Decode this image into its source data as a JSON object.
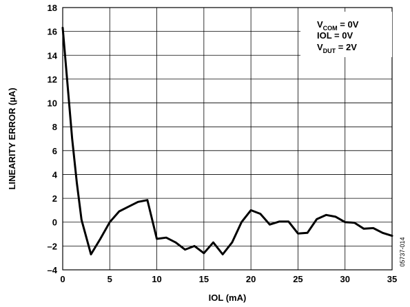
{
  "chart_data": {
    "type": "line",
    "xlabel": "IOL (mA)",
    "ylabel": "LINEARITY ERROR (µA)",
    "xlim": [
      0,
      35
    ],
    "ylim": [
      -4,
      18
    ],
    "x_ticks": [
      0,
      5,
      10,
      15,
      20,
      25,
      30,
      35
    ],
    "y_ticks": [
      -4,
      -2,
      0,
      2,
      4,
      6,
      8,
      10,
      12,
      14,
      16,
      18
    ],
    "grid": true,
    "legend_placement": "top-right",
    "annotations": [
      {
        "main": "V",
        "sub": "COM",
        "rest": " = 0V"
      },
      {
        "main": "IOL = 0V",
        "sub": "",
        "rest": ""
      },
      {
        "main": "V",
        "sub": "DUT",
        "rest": " = 2V"
      }
    ],
    "figure_id": "05737-014",
    "series": [
      {
        "x": [
          0,
          1,
          1.5,
          2,
          3,
          4,
          5,
          6,
          7,
          8,
          9,
          10,
          11,
          12,
          13,
          14,
          15,
          16,
          17,
          18,
          19,
          20,
          21,
          22,
          23,
          24,
          25,
          26,
          27,
          28,
          29,
          30,
          31,
          32,
          33,
          34,
          35
        ],
        "y": [
          16.3,
          7.0,
          3.3,
          0.2,
          -2.7,
          -1.4,
          0.0,
          0.9,
          1.3,
          1.7,
          1.85,
          -1.4,
          -1.3,
          -1.7,
          -2.3,
          -2.0,
          -2.6,
          -1.7,
          -2.7,
          -1.7,
          0.0,
          1.0,
          0.7,
          -0.2,
          0.05,
          0.05,
          -0.95,
          -0.9,
          0.25,
          0.6,
          0.45,
          0.0,
          -0.05,
          -0.55,
          -0.5,
          -0.9,
          -1.15
        ]
      }
    ]
  }
}
